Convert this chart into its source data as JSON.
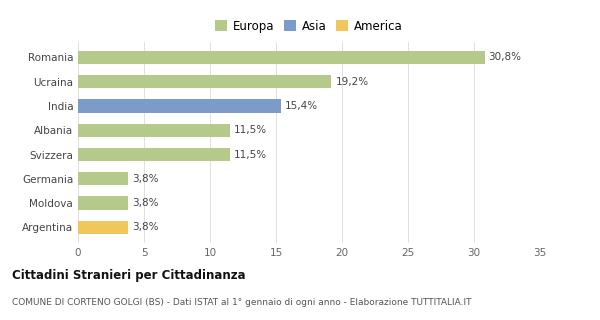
{
  "categories": [
    "Romania",
    "Ucraina",
    "India",
    "Albania",
    "Svizzera",
    "Germania",
    "Moldova",
    "Argentina"
  ],
  "values": [
    30.8,
    19.2,
    15.4,
    11.5,
    11.5,
    3.8,
    3.8,
    3.8
  ],
  "labels": [
    "30,8%",
    "19,2%",
    "15,4%",
    "11,5%",
    "11,5%",
    "3,8%",
    "3,8%",
    "3,8%"
  ],
  "colors": [
    "#b5c98a",
    "#b5c98a",
    "#7b9bc8",
    "#b5c98a",
    "#b5c98a",
    "#b5c98a",
    "#b5c98a",
    "#f0c75a"
  ],
  "legend_labels": [
    "Europa",
    "Asia",
    "America"
  ],
  "legend_colors": [
    "#b5c98a",
    "#7b9bc8",
    "#f0c75a"
  ],
  "xlim": [
    0,
    35
  ],
  "xticks": [
    0,
    5,
    10,
    15,
    20,
    25,
    30,
    35
  ],
  "title": "Cittadini Stranieri per Cittadinanza",
  "subtitle": "COMUNE DI CORTENO GOLGI (BS) - Dati ISTAT al 1° gennaio di ogni anno - Elaborazione TUTTITALIA.IT",
  "bg_color": "#ffffff",
  "grid_color": "#e0e0e0"
}
